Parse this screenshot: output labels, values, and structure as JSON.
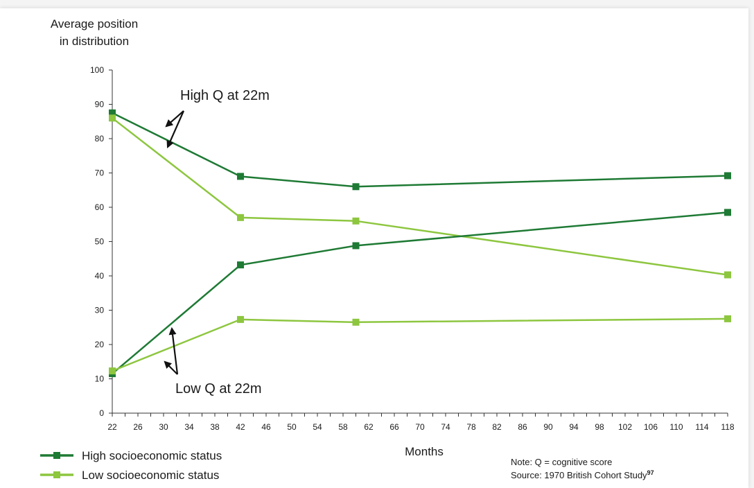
{
  "chart_data": {
    "type": "line",
    "ylabel": [
      "Average position",
      "in distribution"
    ],
    "xlabel": "Months",
    "ylim": [
      0,
      100
    ],
    "yticks": [
      "0",
      "10",
      "20",
      "30",
      "40",
      "50",
      "60",
      "70",
      "80",
      "90",
      "100"
    ],
    "xlim": [
      22,
      118
    ],
    "xticks": [
      "22",
      "26",
      "30",
      "34",
      "38",
      "42",
      "46",
      "50",
      "54",
      "58",
      "62",
      "66",
      "70",
      "74",
      "78",
      "82",
      "86",
      "90",
      "94",
      "98",
      "102",
      "106",
      "110",
      "114",
      "118"
    ],
    "colors": {
      "high_ses": "#1e7a34",
      "low_ses": "#8dc63f"
    },
    "series": [
      {
        "name": "High socioeconomic status",
        "color_key": "high_ses",
        "group": "High Q at 22m",
        "points": [
          [
            22,
            87.5
          ],
          [
            42,
            69
          ],
          [
            60,
            66
          ],
          [
            118,
            69.2
          ]
        ]
      },
      {
        "name": "Low socioeconomic status",
        "color_key": "low_ses",
        "group": "High Q at 22m",
        "points": [
          [
            22,
            86
          ],
          [
            42,
            57
          ],
          [
            60,
            56
          ],
          [
            118,
            40.3
          ]
        ]
      },
      {
        "name": "High socioeconomic status",
        "color_key": "high_ses",
        "group": "Low Q at 22m",
        "points": [
          [
            22,
            11.5
          ],
          [
            42,
            43.2
          ],
          [
            60,
            48.8
          ],
          [
            118,
            58.5
          ]
        ]
      },
      {
        "name": "Low socioeconomic status",
        "color_key": "low_ses",
        "group": "Low Q at 22m",
        "points": [
          [
            22,
            12.3
          ],
          [
            42,
            27.3
          ],
          [
            60,
            26.5
          ],
          [
            118,
            27.5
          ]
        ]
      }
    ],
    "annotations": {
      "high_q": "High Q at 22m",
      "low_q": "Low Q at 22m"
    },
    "legend": [
      {
        "label": "High socioeconomic status",
        "color_key": "high_ses"
      },
      {
        "label": "Low socioeconomic status",
        "color_key": "low_ses"
      }
    ],
    "note": "Note: Q = cognitive score",
    "source": "Source: 1970 British Cohort Study",
    "source_ref": "97"
  }
}
